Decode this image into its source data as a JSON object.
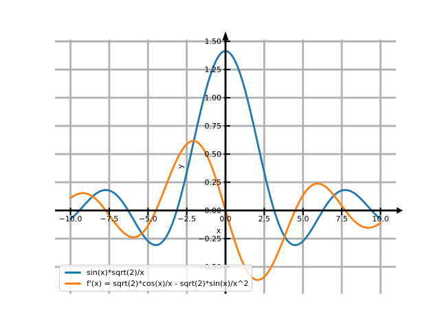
{
  "figure": {
    "background": "#ffffff",
    "grid_color": "#b0b0b0",
    "spine_color": "#000000",
    "tick_label_color": "#000000"
  },
  "chart_data": {
    "type": "line",
    "title": "",
    "xlabel": "x",
    "ylabel": "y",
    "xlim": [
      -11,
      11
    ],
    "ylim": [
      -0.7385,
      1.5157
    ],
    "x_range": [
      -10,
      10
    ],
    "grid": true,
    "legend_position": "lower left",
    "xticks": [
      -10,
      -7.5,
      -5,
      -2.5,
      0,
      2.5,
      5,
      7.5,
      10
    ],
    "xtick_labels": [
      "−10.0",
      "−7.5",
      "−5.0",
      "−2.5",
      "0.0",
      "2.5",
      "5.0",
      "7.5",
      "10.0"
    ],
    "yticks": [
      -0.5,
      -0.25,
      0,
      0.25,
      0.5,
      0.75,
      1,
      1.25,
      1.5
    ],
    "ytick_labels": [
      "−0.50",
      "−0.25",
      "0.00",
      "0.25",
      "0.50",
      "0.75",
      "1.00",
      "1.25",
      "1.50"
    ],
    "series": [
      {
        "name": "sin(x)*sqrt(2)/x",
        "color": "#1f77b4",
        "expr": "Math.sin(x)*Math.sqrt(2)/x",
        "value_at_zero": 1.41421,
        "sample_x": [
          -10,
          -9,
          -8,
          -7,
          -6,
          -5,
          -4,
          -3,
          -2,
          -1,
          0,
          1,
          2,
          3,
          4,
          5,
          6,
          7,
          8,
          9,
          10
        ],
        "sample_y": [
          -0.07694,
          0.06476,
          0.17489,
          0.13273,
          -0.06586,
          -0.27122,
          -0.26757,
          0.06652,
          0.64297,
          1.19001,
          1.41421,
          1.19001,
          0.64297,
          0.06652,
          -0.26757,
          -0.27122,
          -0.06586,
          0.13273,
          0.17489,
          0.06476,
          -0.07694
        ]
      },
      {
        "name": "f'(x) = sqrt(2)*cos(x)/x - sqrt(2)*sin(x)/x^2",
        "color": "#ff7f0e",
        "expr": "Math.sqrt(2)*Math.cos(x)/x - Math.sqrt(2)*Math.sin(x)/(x*x)",
        "value_at_zero": 0,
        "sample_x": [
          -10,
          -9,
          -8,
          -7,
          -6,
          -5,
          -4,
          -3,
          -2,
          -1,
          0,
          1,
          2,
          3,
          4,
          5,
          6,
          7,
          8,
          9,
          10
        ],
        "sample_y": [
          0.11097,
          0.15037,
          0.04758,
          -0.13335,
          -0.23729,
          -0.13448,
          0.16421,
          0.48886,
          0.61575,
          0.42592,
          0,
          -0.42592,
          -0.61575,
          -0.48886,
          -0.16421,
          0.13448,
          0.23729,
          0.13335,
          -0.04758,
          -0.15037,
          -0.11097
        ]
      }
    ]
  },
  "legend": {
    "items": [
      {
        "label": "sin(x)*sqrt(2)/x",
        "color": "#1f77b4"
      },
      {
        "label": "f'(x) = sqrt(2)*cos(x)/x - sqrt(2)*sin(x)/x^2",
        "color": "#ff7f0e"
      }
    ]
  }
}
